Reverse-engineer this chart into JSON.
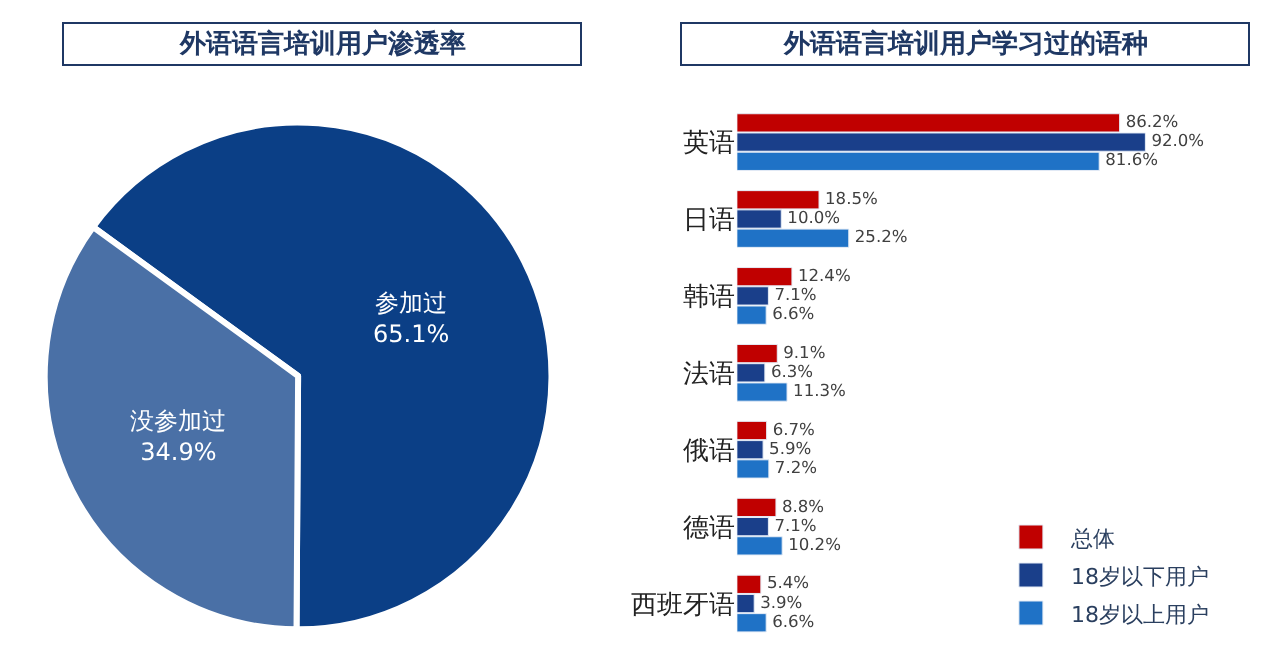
{
  "chart_data": [
    {
      "type": "pie",
      "title": "外语语言培训用户渗透率",
      "categories": [
        "参加过",
        "没参加过"
      ],
      "values": [
        65.1,
        34.9
      ],
      "colors": [
        "#0b3f86",
        "#4a70a6"
      ],
      "value_labels": [
        "65.1%",
        "34.9%"
      ]
    },
    {
      "type": "bar",
      "title": "外语语言培训用户学习过的语种",
      "orientation": "horizontal",
      "legend": "bottom right",
      "categories": [
        "英语",
        "日语",
        "韩语",
        "法语",
        "俄语",
        "德语",
        "西班牙语"
      ],
      "series": [
        {
          "name": "总体",
          "color": "#c00000",
          "values": [
            86.2,
            18.5,
            12.4,
            9.1,
            6.7,
            8.8,
            5.4
          ],
          "value_labels": [
            "86.2%",
            "18.5%",
            "12.4%",
            "9.1%",
            "6.7%",
            "8.8%",
            "5.4%"
          ]
        },
        {
          "name": "18岁以下用户",
          "color": "#1a3f8a",
          "values": [
            92.0,
            10.0,
            7.1,
            6.3,
            5.9,
            7.1,
            3.9
          ],
          "value_labels": [
            "92.0%",
            "10.0%",
            "7.1%",
            "6.3%",
            "5.9%",
            "7.1%",
            "3.9%"
          ]
        },
        {
          "name": "18岁以上用户",
          "color": "#1f72c6",
          "values": [
            81.6,
            25.2,
            6.6,
            11.3,
            7.2,
            10.2,
            6.6
          ],
          "value_labels": [
            "81.6%",
            "25.2%",
            "6.6%",
            "11.3%",
            "7.2%",
            "10.2%",
            "6.6%"
          ]
        }
      ]
    }
  ]
}
